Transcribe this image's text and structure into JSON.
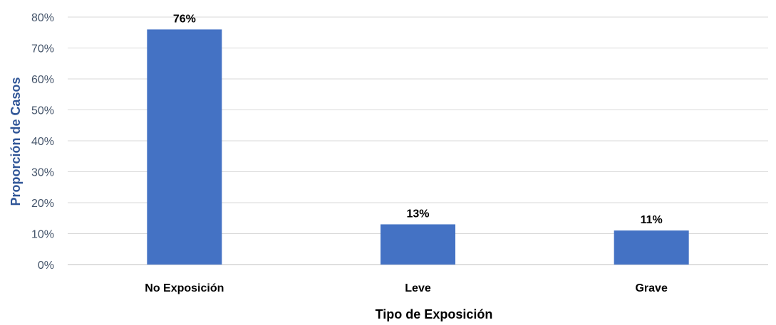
{
  "chart_data": {
    "type": "bar",
    "categories": [
      "No Exposición",
      "Leve",
      "Grave"
    ],
    "values": [
      76,
      13,
      11
    ],
    "data_labels": [
      "76%",
      "13%",
      "11%"
    ],
    "title": "",
    "xlabel": "Tipo de Exposición",
    "ylabel": "Proporción de Casos",
    "ylim": [
      0,
      80
    ],
    "yticks": [
      0,
      10,
      20,
      30,
      40,
      50,
      60,
      70,
      80
    ],
    "ytick_labels": [
      "0%",
      "10%",
      "20%",
      "30%",
      "40%",
      "50%",
      "60%",
      "70%",
      "80%"
    ],
    "grid": true,
    "legend": "none",
    "bar_color": "#4472C4",
    "ylabel_color": "#2F5597",
    "tick_color": "#44546A"
  }
}
